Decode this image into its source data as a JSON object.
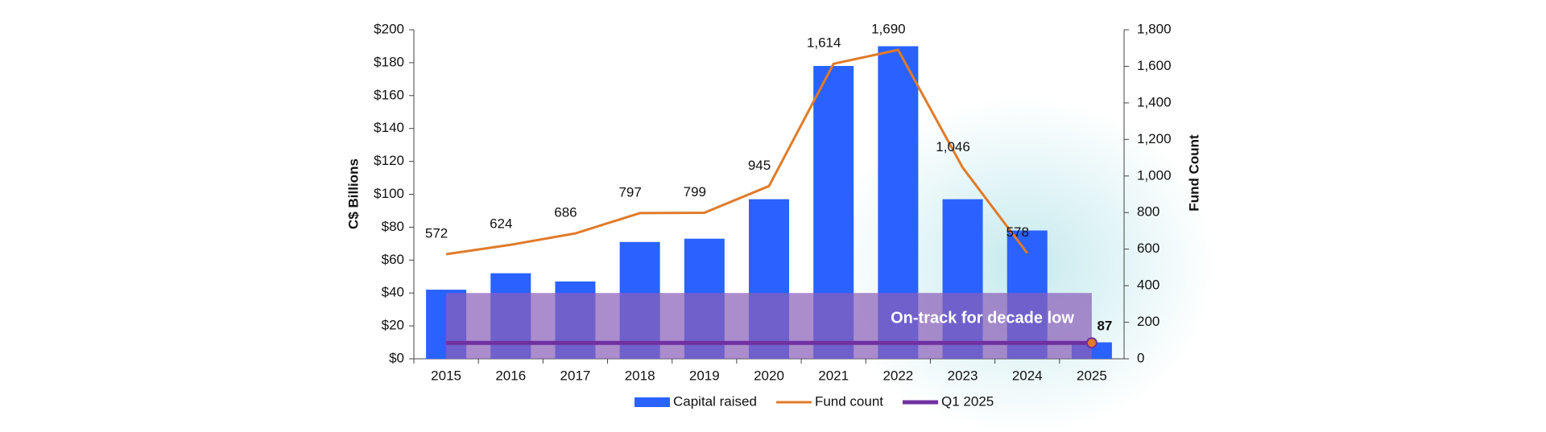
{
  "chart_data": {
    "type": "bar",
    "categories": [
      "2015",
      "2016",
      "2017",
      "2018",
      "2019",
      "2020",
      "2021",
      "2022",
      "2023",
      "2024",
      "2025"
    ],
    "series": [
      {
        "name": "Capital raised",
        "type": "bar",
        "color": "#2962ff",
        "values": [
          42,
          52,
          47,
          71,
          73,
          97,
          178,
          190,
          97,
          78,
          10
        ]
      },
      {
        "name": "Fund count",
        "type": "line",
        "axis": "y2",
        "color": "#e07b2a",
        "values": [
          572,
          624,
          686,
          797,
          799,
          945,
          1614,
          1690,
          1046,
          578,
          null
        ],
        "value_labels": [
          "572",
          "624",
          "686",
          "797",
          "799",
          "945",
          "1,614",
          "1,690",
          "1,046",
          "578",
          null
        ]
      },
      {
        "name": "Q1 2025",
        "type": "line",
        "axis": "y2",
        "color": "#7030a0",
        "values": [
          87,
          87,
          87,
          87,
          87,
          87,
          87,
          87,
          87,
          87,
          87
        ]
      }
    ],
    "highlight": {
      "text": "On-track for decade low",
      "range": [
        0,
        40
      ]
    },
    "ylabel": "C$ Billions",
    "y2label": "Fund Count",
    "ylim": [
      0,
      200
    ],
    "yticks": [
      {
        "value": 0,
        "label": "$0"
      },
      {
        "value": 20,
        "label": "$20"
      },
      {
        "value": 40,
        "label": "$40"
      },
      {
        "value": 60,
        "label": "$60"
      },
      {
        "value": 80,
        "label": "$80"
      },
      {
        "value": 100,
        "label": "$100"
      },
      {
        "value": 120,
        "label": "$120"
      },
      {
        "value": 140,
        "label": "$140"
      },
      {
        "value": 160,
        "label": "$160"
      },
      {
        "value": 180,
        "label": "$180"
      },
      {
        "value": 200,
        "label": "$200"
      }
    ],
    "y2lim": [
      0,
      1800
    ],
    "y2ticks": [
      0,
      200,
      400,
      600,
      800,
      {
        "value": 1000,
        "label": "1,000"
      },
      {
        "value": 1200,
        "label": "1,200"
      },
      {
        "value": 1400,
        "label": "1,400"
      },
      {
        "value": 1600,
        "label": "1,600"
      },
      {
        "value": 1800,
        "label": "1,800"
      }
    ],
    "legend": "bottom"
  }
}
